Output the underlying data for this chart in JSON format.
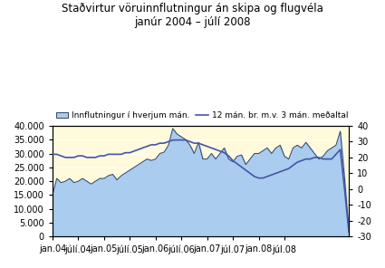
{
  "title_line1": "Staðvirtur vöruinnflutningur án skipa og flugvéla",
  "title_line2": "janúr 2004 – júlí 2008",
  "legend_area_label": "Innflutningur í hverjum mán.",
  "legend_line_label": "12 mán. br. m.v. 3 mán. meðaltal",
  "xlabel_ticks": [
    "jan.04",
    "júlí.04",
    "jan.05",
    "júlí.05",
    "jan.06",
    "júlí.06",
    "jan.07",
    "júl.07",
    "jan.08",
    "júl.08"
  ],
  "ylim_left": [
    0,
    40000
  ],
  "ylim_right": [
    -30,
    40
  ],
  "yticks_left": [
    0,
    5000,
    10000,
    15000,
    20000,
    25000,
    30000,
    35000,
    40000
  ],
  "yticks_right": [
    -30,
    -20,
    -10,
    0,
    10,
    20,
    30,
    40
  ],
  "area_color": "#aaccee",
  "area_edge_color": "#334466",
  "line_color": "#4455aa",
  "bg_plot_color": "#fffadc",
  "area_data": [
    15000,
    21000,
    19500,
    20000,
    21000,
    19500,
    20000,
    21000,
    20000,
    19000,
    20000,
    21000,
    21000,
    22000,
    22500,
    20500,
    22000,
    23000,
    24000,
    25000,
    26000,
    27000,
    28000,
    27500,
    28000,
    30000,
    30500,
    33000,
    39000,
    37000,
    36000,
    35000,
    33000,
    30000,
    34000,
    28000,
    28000,
    30000,
    28000,
    30000,
    32000,
    28000,
    27000,
    29000,
    29500,
    26000,
    28000,
    30000,
    30000,
    31000,
    32000,
    30000,
    32000,
    33000,
    29000,
    28000,
    32000,
    33000,
    32000,
    34000,
    32000,
    30000,
    28000,
    29000,
    31000,
    32000,
    33000,
    38000,
    21000,
    2500
  ],
  "line_data": [
    22,
    22,
    21,
    20,
    20,
    20,
    21,
    21,
    20,
    20,
    20,
    21,
    21,
    22,
    22,
    22,
    22,
    23,
    23,
    24,
    25,
    26,
    27,
    28,
    28,
    29,
    29,
    30,
    31,
    31,
    31,
    31,
    30,
    29,
    29,
    28,
    27,
    26,
    25,
    24,
    23,
    21,
    18,
    16,
    14,
    12,
    10,
    8,
    7,
    7,
    8,
    9,
    10,
    11,
    12,
    13,
    15,
    17,
    18,
    19,
    19,
    20,
    20,
    19,
    19,
    19,
    22,
    25,
    0,
    -27
  ]
}
